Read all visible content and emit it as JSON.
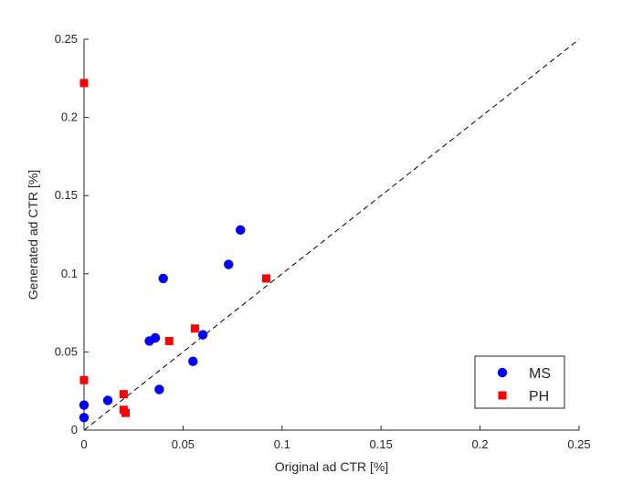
{
  "chart_data": {
    "type": "scatter",
    "title": "",
    "xlabel": "Original ad CTR [%]",
    "ylabel": "Generated ad CTR [%]",
    "xlim": [
      0,
      0.25
    ],
    "ylim": [
      0,
      0.25
    ],
    "xticks": [
      0,
      0.05,
      0.1,
      0.15,
      0.2,
      0.25
    ],
    "yticks": [
      0,
      0.05,
      0.1,
      0.15,
      0.2,
      0.25
    ],
    "xtick_labels": [
      "0",
      "0.05",
      "0.1",
      "0.15",
      "0.2",
      "0.25"
    ],
    "ytick_labels": [
      "0",
      "0.05",
      "0.1",
      "0.15",
      "0.2",
      "0.25"
    ],
    "grid": false,
    "legend_position": "bottom-right",
    "reference_line": {
      "style": "dashed",
      "from": [
        0,
        0
      ],
      "to": [
        0.25,
        0.25
      ],
      "color": "#000000"
    },
    "series": [
      {
        "name": "MS",
        "marker": "circle",
        "color": "#0000ff",
        "points": [
          [
            0.0,
            0.008
          ],
          [
            0.0,
            0.016
          ],
          [
            0.012,
            0.019
          ],
          [
            0.033,
            0.057
          ],
          [
            0.036,
            0.059
          ],
          [
            0.038,
            0.026
          ],
          [
            0.04,
            0.097
          ],
          [
            0.055,
            0.044
          ],
          [
            0.06,
            0.061
          ],
          [
            0.073,
            0.106
          ],
          [
            0.079,
            0.128
          ]
        ]
      },
      {
        "name": "PH",
        "marker": "square",
        "color": "#ff0000",
        "points": [
          [
            0.0,
            0.222
          ],
          [
            0.0,
            0.032
          ],
          [
            0.02,
            0.023
          ],
          [
            0.02,
            0.013
          ],
          [
            0.021,
            0.011
          ],
          [
            0.043,
            0.057
          ],
          [
            0.056,
            0.065
          ],
          [
            0.092,
            0.097
          ]
        ]
      }
    ]
  }
}
